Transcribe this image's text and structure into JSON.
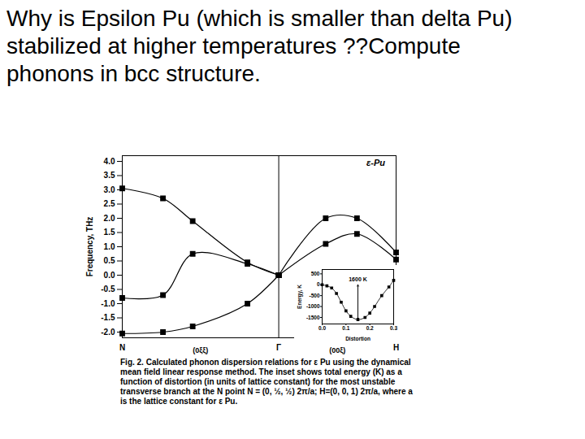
{
  "chart_data": [
    {
      "type": "line",
      "title": "Why is Epsilon Pu (which is smaller than delta Pu) stabilized at higher temperatures ??Compute phonons in bcc structure.",
      "ylabel": "Frequency, THz",
      "caption": "Fig. 2. Calculated phonon dispersion relations for ε Pu using the dynamical mean field linear response method. The inset shows total energy (K) as a function of distortion (in units of lattice constant) for the most unstable transverse branch at the N point N = (0, ½, ½) 2π/a; H=(0, 0, 1) 2π/a, where a is the lattice constant for ε Pu.",
      "xlim": [
        0,
        1.75
      ],
      "ylim": [
        -2.2,
        4.2
      ],
      "xticks": [
        {
          "value": 0,
          "label": "N"
        },
        {
          "value": 1,
          "label": "Γ"
        },
        {
          "value": 1.75,
          "label": "H"
        }
      ],
      "yticks": [
        {
          "value": -2,
          "label": "-2.0"
        },
        -1.5,
        {
          "value": -1,
          "label": "-1.0"
        },
        -0.5,
        {
          "value": 0,
          "label": "0.0"
        },
        0.5,
        {
          "value": 1,
          "label": "1.0"
        },
        1.5,
        {
          "value": 2,
          "label": "2.0"
        },
        2.5,
        {
          "value": 3,
          "label": "3.0"
        },
        3.5,
        {
          "value": 4,
          "label": "4.0"
        }
      ],
      "series": [
        {
          "x": [
            0,
            0.26,
            0.45,
            0.8,
            1.0
          ],
          "values": [
            3.05,
            2.7,
            1.9,
            0.45,
            0
          ],
          "color": "#000000",
          "marker": "square"
        },
        {
          "x": [
            0,
            0.26,
            0.45,
            0.8,
            1.0
          ],
          "values": [
            -0.8,
            -0.7,
            0.75,
            0.4,
            0
          ],
          "color": "#000000",
          "marker": "square"
        },
        {
          "x": [
            0,
            0.26,
            0.45,
            0.8,
            1.0
          ],
          "values": [
            -2.05,
            -2.0,
            -1.8,
            -1.0,
            0
          ],
          "color": "#000000",
          "marker": "square"
        },
        {
          "x": [
            1.0,
            1.3,
            1.5,
            1.75
          ],
          "values": [
            0,
            2.0,
            2.0,
            0.8
          ],
          "color": "#000000",
          "marker": "square"
        },
        {
          "x": [
            1.0,
            1.3,
            1.5,
            1.75
          ],
          "values": [
            0,
            1.1,
            1.45,
            0.55
          ],
          "color": "#000000",
          "marker": "square"
        }
      ],
      "annotations": [
        {
          "x": 0.5,
          "y": -2.2,
          "text": "(0ξξ)"
        },
        {
          "x": 1.375,
          "y": -2.2,
          "text": "(00ξ)"
        },
        {
          "x": 1.62,
          "y": 3.95,
          "text": "ε-Pu"
        }
      ]
    },
    {
      "type": "line",
      "xlabel": "Distortion",
      "ylabel": "Energy, K",
      "xlim": [
        0,
        0.3
      ],
      "ylim": [
        -1800,
        700
      ],
      "xticks": [
        {
          "value": 0,
          "label": "0.0"
        },
        0.1,
        0.2,
        0.3
      ],
      "yticks": [
        500,
        0,
        -500,
        -1000,
        -1500
      ],
      "series": [
        {
          "x": [
            0,
            0.02,
            0.04,
            0.06,
            0.08,
            0.1,
            0.12,
            0.15,
            0.18,
            0.2,
            0.22,
            0.25,
            0.28,
            0.3
          ],
          "values": [
            0,
            -50,
            -150,
            -400,
            -800,
            -1200,
            -1450,
            -1600,
            -1500,
            -1300,
            -1000,
            -500,
            -100,
            200
          ],
          "color": "#000000",
          "marker": "square"
        }
      ],
      "annotations": [
        {
          "x": 0.15,
          "y": 250,
          "text": "1600 K"
        }
      ],
      "arrows": [
        {
          "x": 0.15,
          "y1": 0,
          "y2": -1600
        }
      ]
    }
  ]
}
